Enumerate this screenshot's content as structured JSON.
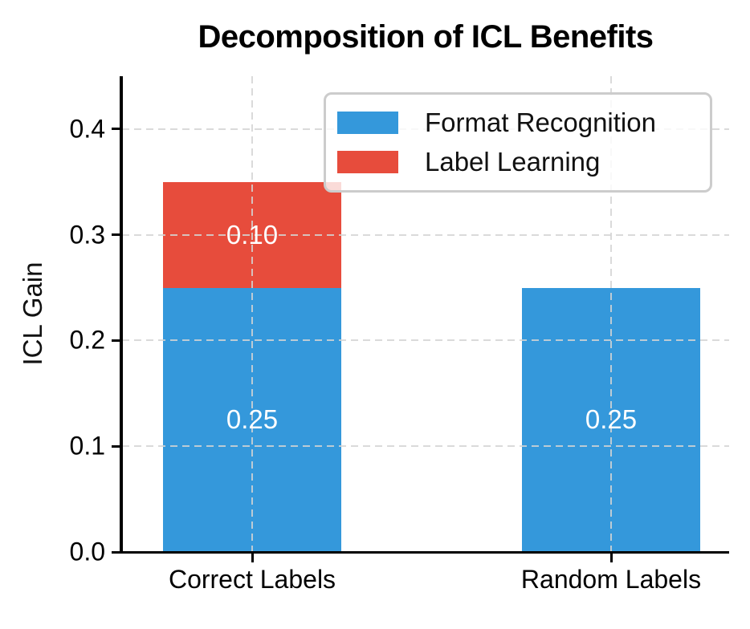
{
  "chart_data": {
    "type": "bar",
    "stacked": true,
    "title": "Decomposition of ICL Benefits",
    "xlabel": "",
    "ylabel": "ICL Gain",
    "categories": [
      "Correct Labels",
      "Random Labels"
    ],
    "series": [
      {
        "name": "Format Recognition",
        "color": "#3498db",
        "values": [
          0.25,
          0.25
        ],
        "value_labels": [
          "0.25",
          "0.25"
        ]
      },
      {
        "name": "Label Learning",
        "color": "#e74c3c",
        "values": [
          0.1,
          0.0
        ],
        "value_labels": [
          "0.10",
          ""
        ]
      }
    ],
    "ylim": [
      0,
      0.45
    ],
    "yticks": [
      0.0,
      0.1,
      0.2,
      0.3,
      0.4
    ],
    "ytick_labels": [
      "0.0",
      "0.1",
      "0.2",
      "0.3",
      "0.4"
    ],
    "grid": {
      "style": "dashed",
      "x": true,
      "y": true,
      "color": "#d4d4d4",
      "drawn_over_bars": true
    },
    "legend": {
      "position": "upper right",
      "entries": [
        "Format Recognition",
        "Label Learning"
      ],
      "border_color": "#cccccc",
      "background": "rgba(255,255,255,0.8)"
    },
    "value_label_color": "#ffffff",
    "axis_color": "#000000"
  }
}
